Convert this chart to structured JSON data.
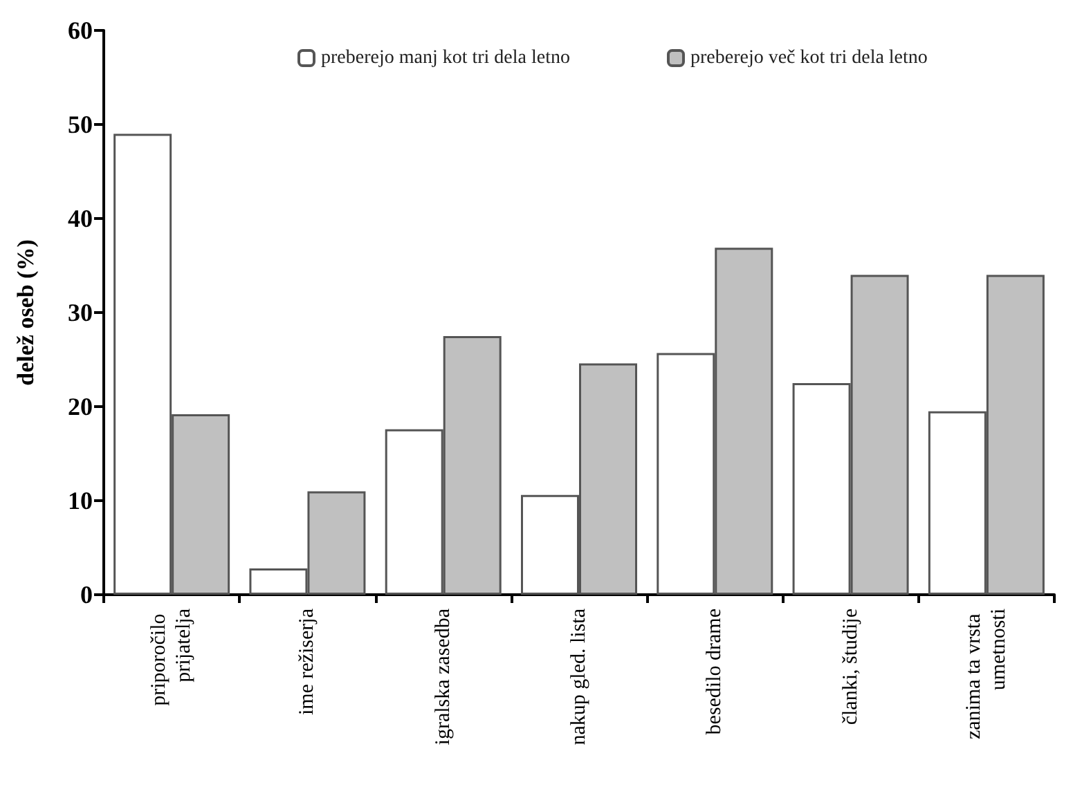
{
  "chart_data": {
    "type": "bar",
    "ylabel": "delež oseb (%)",
    "categories": [
      "priporočilo prijatelja",
      "ime režiserja",
      "igralska zasedba",
      "nakup gled. lista",
      "besedilo drame",
      "članki, študije",
      "zanima ta vrsta umetnosti"
    ],
    "series": [
      {
        "name": "preberejo manj kot tri dela letno",
        "color": "#ffffff",
        "values": [
          49.0,
          2.8,
          17.6,
          10.6,
          25.7,
          22.5,
          19.5
        ]
      },
      {
        "name": "preberejo več kot tri dela letno",
        "color": "#c0c0c0",
        "values": [
          19.2,
          11.0,
          27.5,
          24.6,
          36.9,
          34.0,
          34.0
        ]
      }
    ],
    "ylim": [
      0,
      60
    ],
    "yticks": [
      0,
      10,
      20,
      30,
      40,
      50,
      60
    ],
    "grid": false,
    "legend": "top"
  }
}
